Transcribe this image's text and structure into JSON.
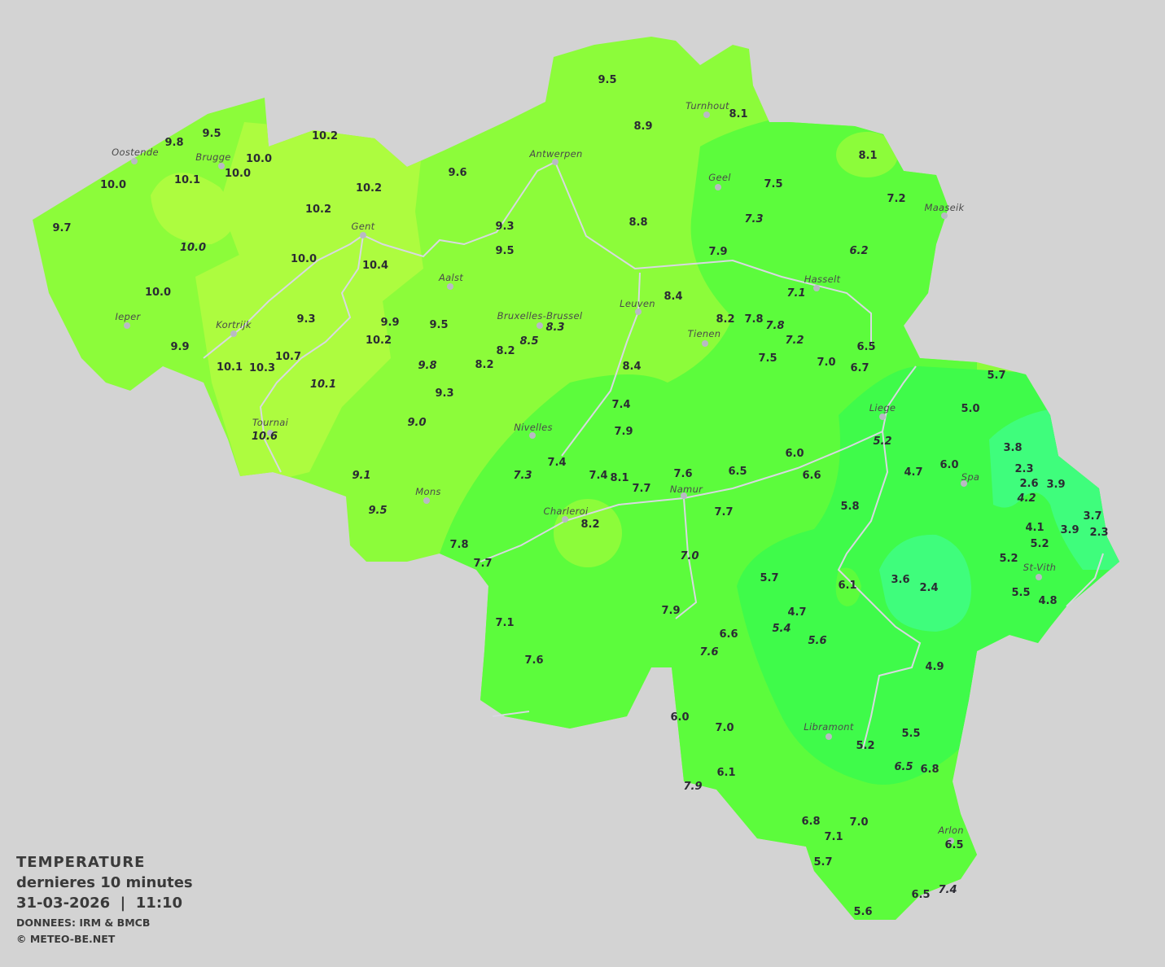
{
  "legend": {
    "title": "TEMPERATURE",
    "subtitle": "dernieres 10 minutes",
    "datetime": "31-03-2026  |  11:10",
    "source": "DONNEES: IRM & BMCB",
    "copyright": "© METEO-BE.NET"
  },
  "colors": {
    "background": "#d3d3d3",
    "band_10_11": "#adfc3f",
    "band_8_10": "#8cfc3a",
    "band_6_8": "#5cfc3c",
    "band_4_6": "#3ffb4a",
    "band_2_4": "#3ffd7c",
    "rivers": "#d8d8e0"
  },
  "cities": [
    "Oostende",
    "Brugge",
    "Gent",
    "Antwerpen",
    "Turnhout",
    "Geel",
    "Maaseik",
    "Aalst",
    "Ieper",
    "Kortrijk",
    "Bruxelles-Brussel",
    "Leuven",
    "Tienen",
    "Hasselt",
    "Liege",
    "Tournai",
    "Nivelles",
    "Mons",
    "Charleroi",
    "Namur",
    "Spa",
    "St-Vith",
    "Libramont",
    "Arlon"
  ],
  "stations": [
    {
      "v": "9.5"
    },
    {
      "v": "8.9"
    },
    {
      "v": "8.1"
    },
    {
      "v": "9.5"
    },
    {
      "v": "9.8"
    },
    {
      "v": "10.0"
    },
    {
      "v": "10.0"
    },
    {
      "v": "10.2"
    },
    {
      "v": "9.6"
    },
    {
      "v": "10.1"
    },
    {
      "v": "10.0"
    },
    {
      "v": "10.2"
    },
    {
      "v": "8.1"
    },
    {
      "v": "7.5"
    },
    {
      "v": "7.2"
    },
    {
      "v": "10.2"
    },
    {
      "v": "9.3"
    },
    {
      "v": "8.8"
    },
    {
      "v": "7.3",
      "italic": true
    },
    {
      "v": "9.7"
    },
    {
      "v": "10.0",
      "italic": true
    },
    {
      "v": "9.5"
    },
    {
      "v": "7.9"
    },
    {
      "v": "6.2",
      "italic": true
    },
    {
      "v": "10.0"
    },
    {
      "v": "10.4"
    },
    {
      "v": "10.0"
    },
    {
      "v": "7.1",
      "italic": true
    },
    {
      "v": "8.4"
    },
    {
      "v": "9.3"
    },
    {
      "v": "9.9"
    },
    {
      "v": "9.5"
    },
    {
      "v": "8.3",
      "italic": true
    },
    {
      "v": "8.5",
      "italic": true
    },
    {
      "v": "8.2"
    },
    {
      "v": "7.8"
    },
    {
      "v": "7.8",
      "italic": true
    },
    {
      "v": "7.2",
      "italic": true
    },
    {
      "v": "10.2"
    },
    {
      "v": "8.2"
    },
    {
      "v": "9.9"
    },
    {
      "v": "6.5"
    },
    {
      "v": "10.7"
    },
    {
      "v": "7.5"
    },
    {
      "v": "7.0"
    },
    {
      "v": "6.7"
    },
    {
      "v": "10.1"
    },
    {
      "v": "10.3"
    },
    {
      "v": "9.8",
      "italic": true
    },
    {
      "v": "8.2"
    },
    {
      "v": "8.4"
    },
    {
      "v": "10.1",
      "italic": true
    },
    {
      "v": "9.3"
    },
    {
      "v": "7.4"
    },
    {
      "v": "5.7"
    },
    {
      "v": "5.0"
    },
    {
      "v": "9.0",
      "italic": true
    },
    {
      "v": "7.9"
    },
    {
      "v": "10.6",
      "italic": true
    },
    {
      "v": "5.2",
      "italic": true
    },
    {
      "v": "3.8"
    },
    {
      "v": "6.0"
    },
    {
      "v": "7.4"
    },
    {
      "v": "4.7"
    },
    {
      "v": "6.0"
    },
    {
      "v": "2.3"
    },
    {
      "v": "6.5"
    },
    {
      "v": "9.1",
      "italic": true
    },
    {
      "v": "7.3",
      "italic": true
    },
    {
      "v": "7.4"
    },
    {
      "v": "8.1"
    },
    {
      "v": "7.6"
    },
    {
      "v": "6.6"
    },
    {
      "v": "2.6"
    },
    {
      "v": "3.9"
    },
    {
      "v": "7.7"
    },
    {
      "v": "4.2",
      "italic": true
    },
    {
      "v": "9.5",
      "italic": true
    },
    {
      "v": "5.8"
    },
    {
      "v": "7.7"
    },
    {
      "v": "3.7"
    },
    {
      "v": "4.1"
    },
    {
      "v": "8.2"
    },
    {
      "v": "3.9"
    },
    {
      "v": "2.3"
    },
    {
      "v": "5.2"
    },
    {
      "v": "7.8"
    },
    {
      "v": "7.0",
      "italic": true
    },
    {
      "v": "5.2"
    },
    {
      "v": "7.7"
    },
    {
      "v": "5.7"
    },
    {
      "v": "3.6"
    },
    {
      "v": "6.1"
    },
    {
      "v": "2.4"
    },
    {
      "v": "5.5"
    },
    {
      "v": "4.8"
    },
    {
      "v": "7.9"
    },
    {
      "v": "4.7"
    },
    {
      "v": "7.1"
    },
    {
      "v": "5.4",
      "italic": true
    },
    {
      "v": "6.6"
    },
    {
      "v": "5.6",
      "italic": true
    },
    {
      "v": "7.6",
      "italic": true
    },
    {
      "v": "7.6"
    },
    {
      "v": "4.9"
    },
    {
      "v": "6.0"
    },
    {
      "v": "7.0"
    },
    {
      "v": "5.5"
    },
    {
      "v": "5.2"
    },
    {
      "v": "6.5",
      "italic": true
    },
    {
      "v": "6.8"
    },
    {
      "v": "6.1"
    },
    {
      "v": "7.9",
      "italic": true
    },
    {
      "v": "7.0"
    },
    {
      "v": "6.8"
    },
    {
      "v": "7.1"
    },
    {
      "v": "6.5"
    },
    {
      "v": "5.7"
    },
    {
      "v": "6.5"
    },
    {
      "v": "7.4",
      "italic": true
    },
    {
      "v": "5.6"
    }
  ]
}
